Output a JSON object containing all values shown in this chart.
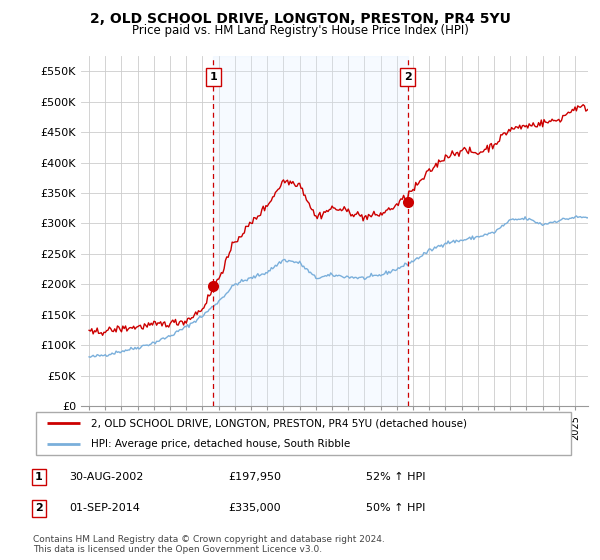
{
  "title": "2, OLD SCHOOL DRIVE, LONGTON, PRESTON, PR4 5YU",
  "subtitle": "Price paid vs. HM Land Registry's House Price Index (HPI)",
  "ylabel_ticks": [
    "£0",
    "£50K",
    "£100K",
    "£150K",
    "£200K",
    "£250K",
    "£300K",
    "£350K",
    "£400K",
    "£450K",
    "£500K",
    "£550K"
  ],
  "ytick_vals": [
    0,
    50000,
    100000,
    150000,
    200000,
    250000,
    300000,
    350000,
    400000,
    450000,
    500000,
    550000
  ],
  "ylim": [
    0,
    575000
  ],
  "legend_line1": "2, OLD SCHOOL DRIVE, LONGTON, PRESTON, PR4 5YU (detached house)",
  "legend_line2": "HPI: Average price, detached house, South Ribble",
  "transaction1_date": "30-AUG-2002",
  "transaction1_price": "£197,950",
  "transaction1_hpi": "52% ↑ HPI",
  "transaction2_date": "01-SEP-2014",
  "transaction2_price": "£335,000",
  "transaction2_hpi": "50% ↑ HPI",
  "footnote1": "Contains HM Land Registry data © Crown copyright and database right 2024.",
  "footnote2": "This data is licensed under the Open Government Licence v3.0.",
  "red_color": "#cc0000",
  "blue_color": "#7aafdb",
  "vline_color": "#cc0000",
  "fill_color": "#ddeeff",
  "background_color": "#ffffff",
  "grid_color": "#cccccc",
  "transaction1_x": 2002.67,
  "transaction1_y": 197950,
  "transaction2_x": 2014.67,
  "transaction2_y": 335000,
  "xmin": 1994.5,
  "xmax": 2025.8,
  "xlim_left": 1994.5,
  "xlim_right": 2025.8
}
